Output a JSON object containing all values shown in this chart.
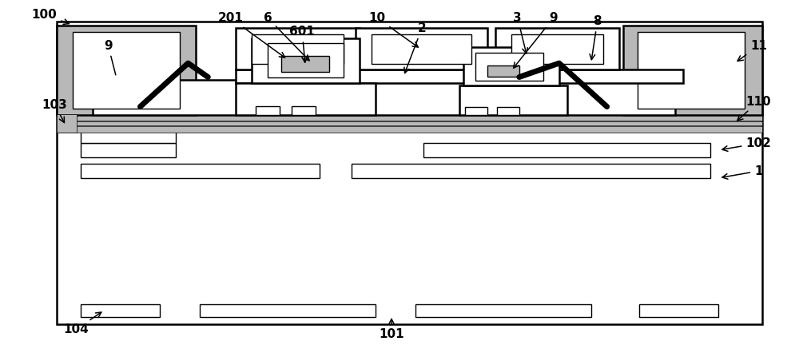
{
  "bg": "#ffffff",
  "ec": "#000000",
  "gray": "#b8b8b8",
  "lw1": 1.0,
  "lw2": 1.8,
  "lw3": 5.0,
  "fs": 11
}
